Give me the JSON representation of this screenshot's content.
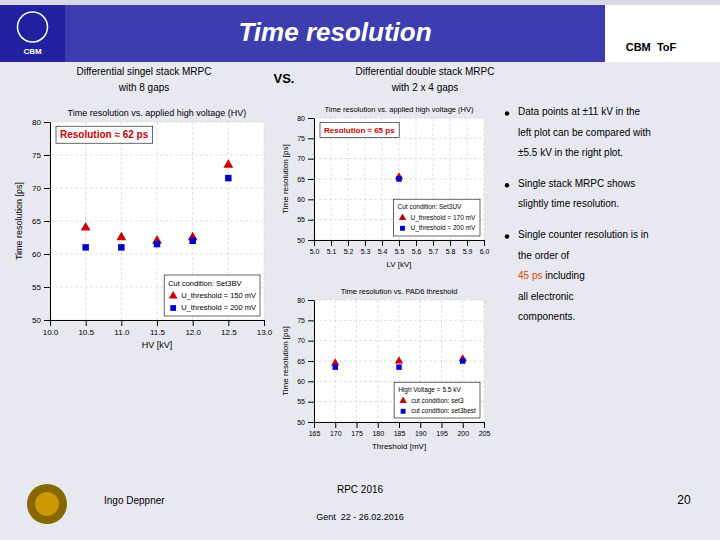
{
  "title": "Time resolution",
  "annotations": [
    {
      "text": "CBM"
    },
    {
      "text": "CBM  ToF"
    },
    {
      "text": "Differential singel stack MRPC"
    },
    {
      "text": "with 8 gaps"
    },
    {
      "text": "VS."
    },
    {
      "text": "Differential double stack MRPC"
    },
    {
      "text": "with 2 x 4 gaps"
    },
    {
      "text": "Data points at ±11 kV in the"
    },
    {
      "text": "left plot can be compared with"
    },
    {
      "text": "±5.5 kV in the right plot."
    },
    {
      "text": "Single stack MRPC shows"
    },
    {
      "text": "slightly time resolution."
    },
    {
      "text": "Single counter resolution is in"
    },
    {
      "text": "the order of"
    },
    {
      "text": "45 ps",
      "color": "#dd4400"
    },
    {
      "text": " including"
    },
    {
      "text": "all electronic"
    },
    {
      "text": "components."
    },
    {
      "text": "Ingo Deppner"
    },
    {
      "text": "RPC 2016"
    },
    {
      "text": "Gent  22 - 26.02.2016"
    },
    {
      "text": "20"
    }
  ],
  "chart_data": [
    {
      "type": "scatter",
      "title": "Time resolution vs. applied high voltage (HV)",
      "x_label": "HV [kV]",
      "y_label": "Time resolution [ps]",
      "xlim": [
        10,
        13
      ],
      "ylim": [
        50,
        80
      ],
      "xticks": [
        {
          "value": 10,
          "label": "10.0"
        },
        10.5,
        {
          "value": 11,
          "label": "11.0"
        },
        11.5,
        {
          "value": 12,
          "label": "12.0"
        },
        12.5,
        {
          "value": 13,
          "label": "13.0"
        }
      ],
      "yticks": [
        50,
        55,
        60,
        65,
        70,
        75,
        80
      ],
      "grid": true,
      "legend": "lower right",
      "legend_title": "Cut condition: Set3BV",
      "series": [
        {
          "name": "U_threshold = 150 mV",
          "color": "#cc0000",
          "marker": "triangle",
          "x": [
            10.5,
            11,
            11.5,
            12,
            12.5
          ],
          "values": [
            64.0,
            62.5,
            62.0,
            62.5,
            73.5
          ]
        },
        {
          "name": "U_threshold = 200 mV",
          "color": "#0000cc",
          "marker": "square",
          "x": [
            10.5,
            11,
            11.5,
            12,
            12.5
          ],
          "values": [
            61.0,
            61.0,
            61.5,
            62.0,
            71.5
          ]
        }
      ],
      "annotations": [
        {
          "text": "Resolution ≈ 62 ps",
          "color": "#cc0000"
        }
      ]
    },
    {
      "type": "scatter",
      "title": "Time resolution vs. applied high voltage (HV)",
      "x_label": "LV [kV]",
      "y_label": "Time resolution [ps]",
      "xlim": [
        5.0,
        6.0
      ],
      "ylim": [
        50,
        80
      ],
      "xticks": [
        {
          "value": 5,
          "label": "5.0"
        },
        5.1,
        5.2,
        5.3,
        5.4,
        5.5,
        5.6,
        5.7,
        5.8,
        5.9,
        {
          "value": 6,
          "label": "6.0"
        }
      ],
      "yticks": [
        50,
        55,
        60,
        65,
        70,
        75,
        80
      ],
      "grid": true,
      "legend": "lower right",
      "legend_title": "Cut condition: Set3UV",
      "series": [
        {
          "name": "U_threshold = 170 mV",
          "color": "#cc0000",
          "marker": "triangle",
          "x": [
            5.5
          ],
          "values": [
            65.5
          ]
        },
        {
          "name": "U_threshold = 200 mV",
          "color": "#0000cc",
          "marker": "square",
          "x": [
            5.5
          ],
          "values": [
            65.0
          ]
        }
      ],
      "annotations": [
        {
          "text": "Resolution ≈ 65 ps",
          "color": "#cc0000"
        }
      ]
    },
    {
      "type": "scatter",
      "title": "Time resolution vs. PAD6 threshold",
      "x_label": "Threshold [mV]",
      "y_label": "Time resolution [ps]",
      "xlim": [
        165,
        205
      ],
      "ylim": [
        50,
        80
      ],
      "xticks": [
        165,
        170,
        175,
        180,
        185,
        190,
        195,
        200,
        205
      ],
      "yticks": [
        50,
        55,
        60,
        65,
        70,
        75,
        80
      ],
      "grid": true,
      "legend": "lower right",
      "legend_title": "High Voltage = 5.5 kV",
      "series": [
        {
          "name": "cut condition: set3",
          "color": "#cc0000",
          "marker": "triangle",
          "x": [
            170,
            185,
            200
          ],
          "values": [
            64.5,
            65.0,
            65.5
          ]
        },
        {
          "name": "cut condition: set3best",
          "color": "#0000cc",
          "marker": "square",
          "x": [
            170,
            185,
            200
          ],
          "values": [
            63.5,
            63.5,
            65.0
          ]
        }
      ]
    }
  ]
}
